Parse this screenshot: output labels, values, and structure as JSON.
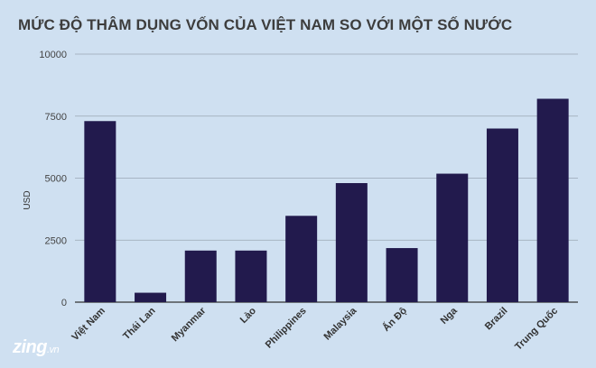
{
  "chart_data": {
    "type": "bar",
    "title": "MỨC ĐỘ THÂM DỤNG VỐN CỦA VIỆT NAM SO VỚI MỘT SỐ NƯỚC",
    "xlabel": "",
    "ylabel": "USD",
    "ylim": [
      0,
      10000
    ],
    "yticks": [
      0,
      2500,
      5000,
      7500,
      10000
    ],
    "ytick_labels": [
      "0",
      "2500",
      "5000",
      "7500",
      "10000"
    ],
    "grid": true,
    "categories": [
      "Việt Nam",
      "Thái Lan",
      "Myanmar",
      "Lào",
      "Philippines",
      "Malaysia",
      "Ấn Độ",
      "Nga",
      "Brazil",
      "Trung Quốc"
    ],
    "values": [
      7300,
      380,
      2080,
      2080,
      3480,
      4800,
      2180,
      5180,
      7000,
      8200
    ],
    "bar_color": "#221a4d"
  },
  "watermark": {
    "brand": "zing",
    "suffix": ".vn"
  }
}
